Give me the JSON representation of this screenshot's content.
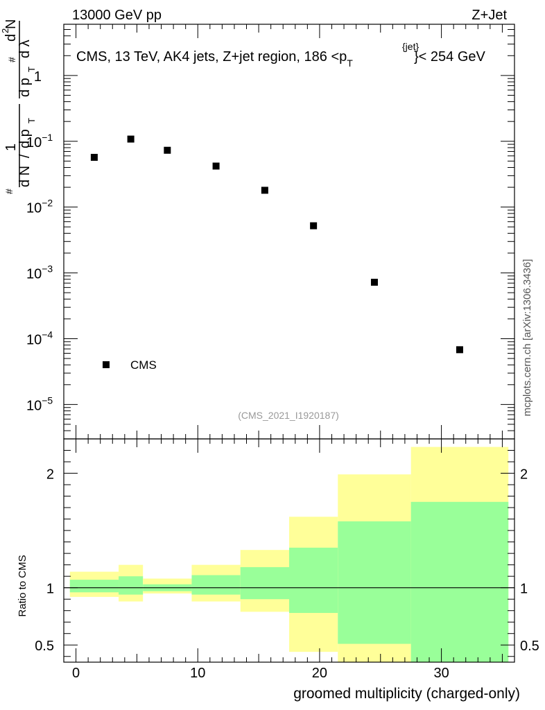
{
  "chart_data": {
    "type": "scatter",
    "header_left": "13000 GeV pp",
    "header_right": "Z+Jet",
    "title_main": "CMS, 13 TeV, AK4 jets, Z+jet region, 186 <p",
    "title_sup": "{jet}",
    "title_sub": "T",
    "title_end": "}< 254 GeV",
    "ylabel_upper": "1/(dN/dp_T) d²N/(dp_T dλ)",
    "ylabel_glyphs": {
      "one": "1",
      "hash": "#",
      "dN": "d N",
      "slash": "/",
      "dpT_a": "d p",
      "hash2": "#",
      "dpT_b": "d p",
      "T": "T",
      "d2N": "d",
      "two": "2",
      "N": "N",
      "dlambda": "d λ"
    },
    "ylabel_ratio": "Ratio to CMS",
    "xlabel": "groomed multiplicity (charged-only)",
    "watermark": "(CMS_2021_I1920187)",
    "side_text": "mcplots.cern.ch [arXiv:1306.3436]",
    "legend": [
      {
        "name": "CMS",
        "marker": "square"
      }
    ],
    "x_range": [
      -1,
      36
    ],
    "y_range_log": [
      3e-06,
      6
    ],
    "ratio_range": [
      0.35,
      2.3
    ],
    "x_ticks": [
      0,
      10,
      20,
      30
    ],
    "y_major_ticks": [
      {
        "value": 1,
        "label": "1",
        "sup": ""
      },
      {
        "value": 0.1,
        "label": "10",
        "sup": "−1"
      },
      {
        "value": 0.01,
        "label": "10",
        "sup": "−2"
      },
      {
        "value": 0.001,
        "label": "10",
        "sup": "−3"
      },
      {
        "value": 0.0001,
        "label": "10",
        "sup": "−4"
      },
      {
        "value": 1e-05,
        "label": "10",
        "sup": "−5"
      }
    ],
    "ratio_ticks": [
      {
        "value": 0.5,
        "label": "0.5"
      },
      {
        "value": 1,
        "label": "1"
      },
      {
        "value": 2,
        "label": "2"
      }
    ],
    "series": [
      {
        "name": "CMS",
        "points": [
          {
            "x": 1.5,
            "y": 0.057
          },
          {
            "x": 4.5,
            "y": 0.108
          },
          {
            "x": 7.5,
            "y": 0.073
          },
          {
            "x": 11.5,
            "y": 0.042
          },
          {
            "x": 15.5,
            "y": 0.018
          },
          {
            "x": 19.5,
            "y": 0.0052
          },
          {
            "x": 24.5,
            "y": 0.00072
          },
          {
            "x": 31.5,
            "y": 6.8e-05
          }
        ]
      }
    ],
    "ratio_bands": [
      {
        "x0": -0.5,
        "x1": 3.5,
        "green": [
          0.96,
          1.07
        ],
        "yellow": [
          0.92,
          1.14
        ]
      },
      {
        "x0": 3.5,
        "x1": 5.5,
        "green": [
          0.94,
          1.1
        ],
        "yellow": [
          0.88,
          1.2
        ]
      },
      {
        "x0": 5.5,
        "x1": 9.5,
        "green": [
          0.97,
          1.03
        ],
        "yellow": [
          0.95,
          1.08
        ]
      },
      {
        "x0": 9.5,
        "x1": 13.5,
        "green": [
          0.94,
          1.11
        ],
        "yellow": [
          0.88,
          1.2
        ]
      },
      {
        "x0": 13.5,
        "x1": 17.5,
        "green": [
          0.9,
          1.18
        ],
        "yellow": [
          0.79,
          1.33
        ]
      },
      {
        "x0": 17.5,
        "x1": 21.5,
        "green": [
          0.78,
          1.35
        ],
        "yellow": [
          0.44,
          1.62
        ]
      },
      {
        "x0": 21.5,
        "x1": 27.5,
        "green": [
          0.51,
          1.58
        ],
        "yellow": [
          0.35,
          1.99
        ]
      },
      {
        "x0": 27.5,
        "x1": 35.5,
        "green": [
          0.35,
          1.75
        ],
        "yellow": [
          0.35,
          2.23
        ]
      }
    ],
    "colors": {
      "green": "#99ff99",
      "yellow": "#ffff99",
      "marker": "#000000",
      "watermark": "#999999"
    }
  }
}
